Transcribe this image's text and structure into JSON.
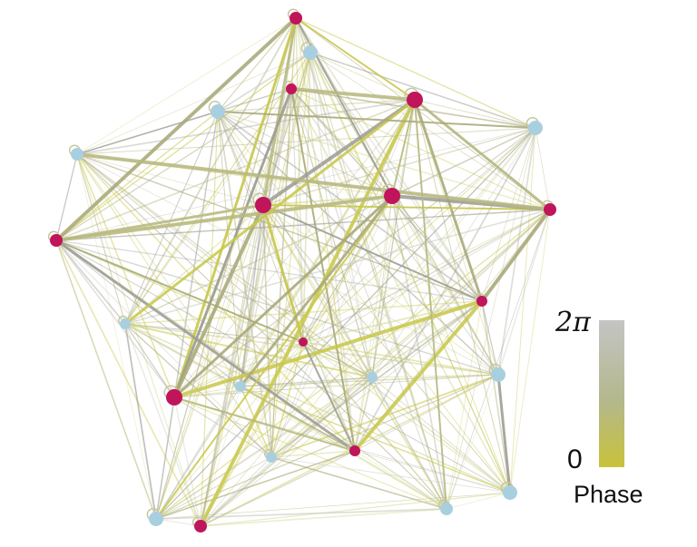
{
  "colorbar": {
    "max_label": "2π",
    "min_label": "0",
    "label": "Phase",
    "colors": {
      "high": "#c4c4c4",
      "mid": "#b4b88c",
      "low": "#c8c23a"
    }
  },
  "node_colors": {
    "magenta": "#c0155a",
    "blue": "#a8cfe0"
  },
  "edge_colors": [
    "#c9c84a",
    "#b7b97f",
    "#a8a878",
    "#9c9c94",
    "#cfd78c",
    "#c8c8c0"
  ]
}
